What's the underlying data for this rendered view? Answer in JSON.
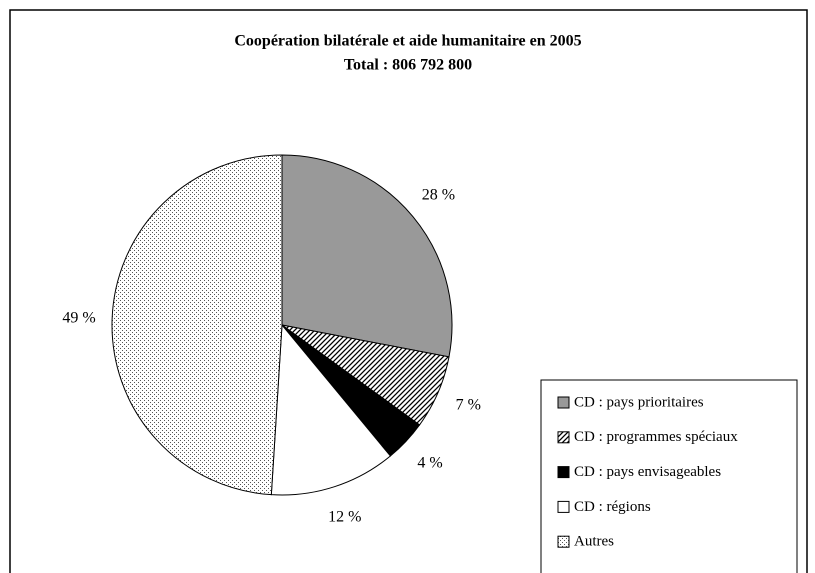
{
  "chart_data": {
    "type": "pie",
    "title": "Coopération bilatérale et aide humanitaire en 2005",
    "subtitle": "Total : 806 792 800",
    "categories": [
      "CD : pays prioritaires",
      "CD : programmes spéciaux",
      "CD : pays envisageables",
      "CD : régions",
      "Autres"
    ],
    "values": [
      28,
      7,
      4,
      12,
      49
    ],
    "value_labels": [
      "28 %",
      "7 %",
      "4 %",
      "12 %",
      "49 %"
    ],
    "colors": [
      "#999999",
      "#ffffff",
      "#000000",
      "#ffffff",
      "#ffffff"
    ],
    "patterns": [
      null,
      "diagonal",
      null,
      null,
      "dotted"
    ],
    "legend": "bottom-right"
  }
}
